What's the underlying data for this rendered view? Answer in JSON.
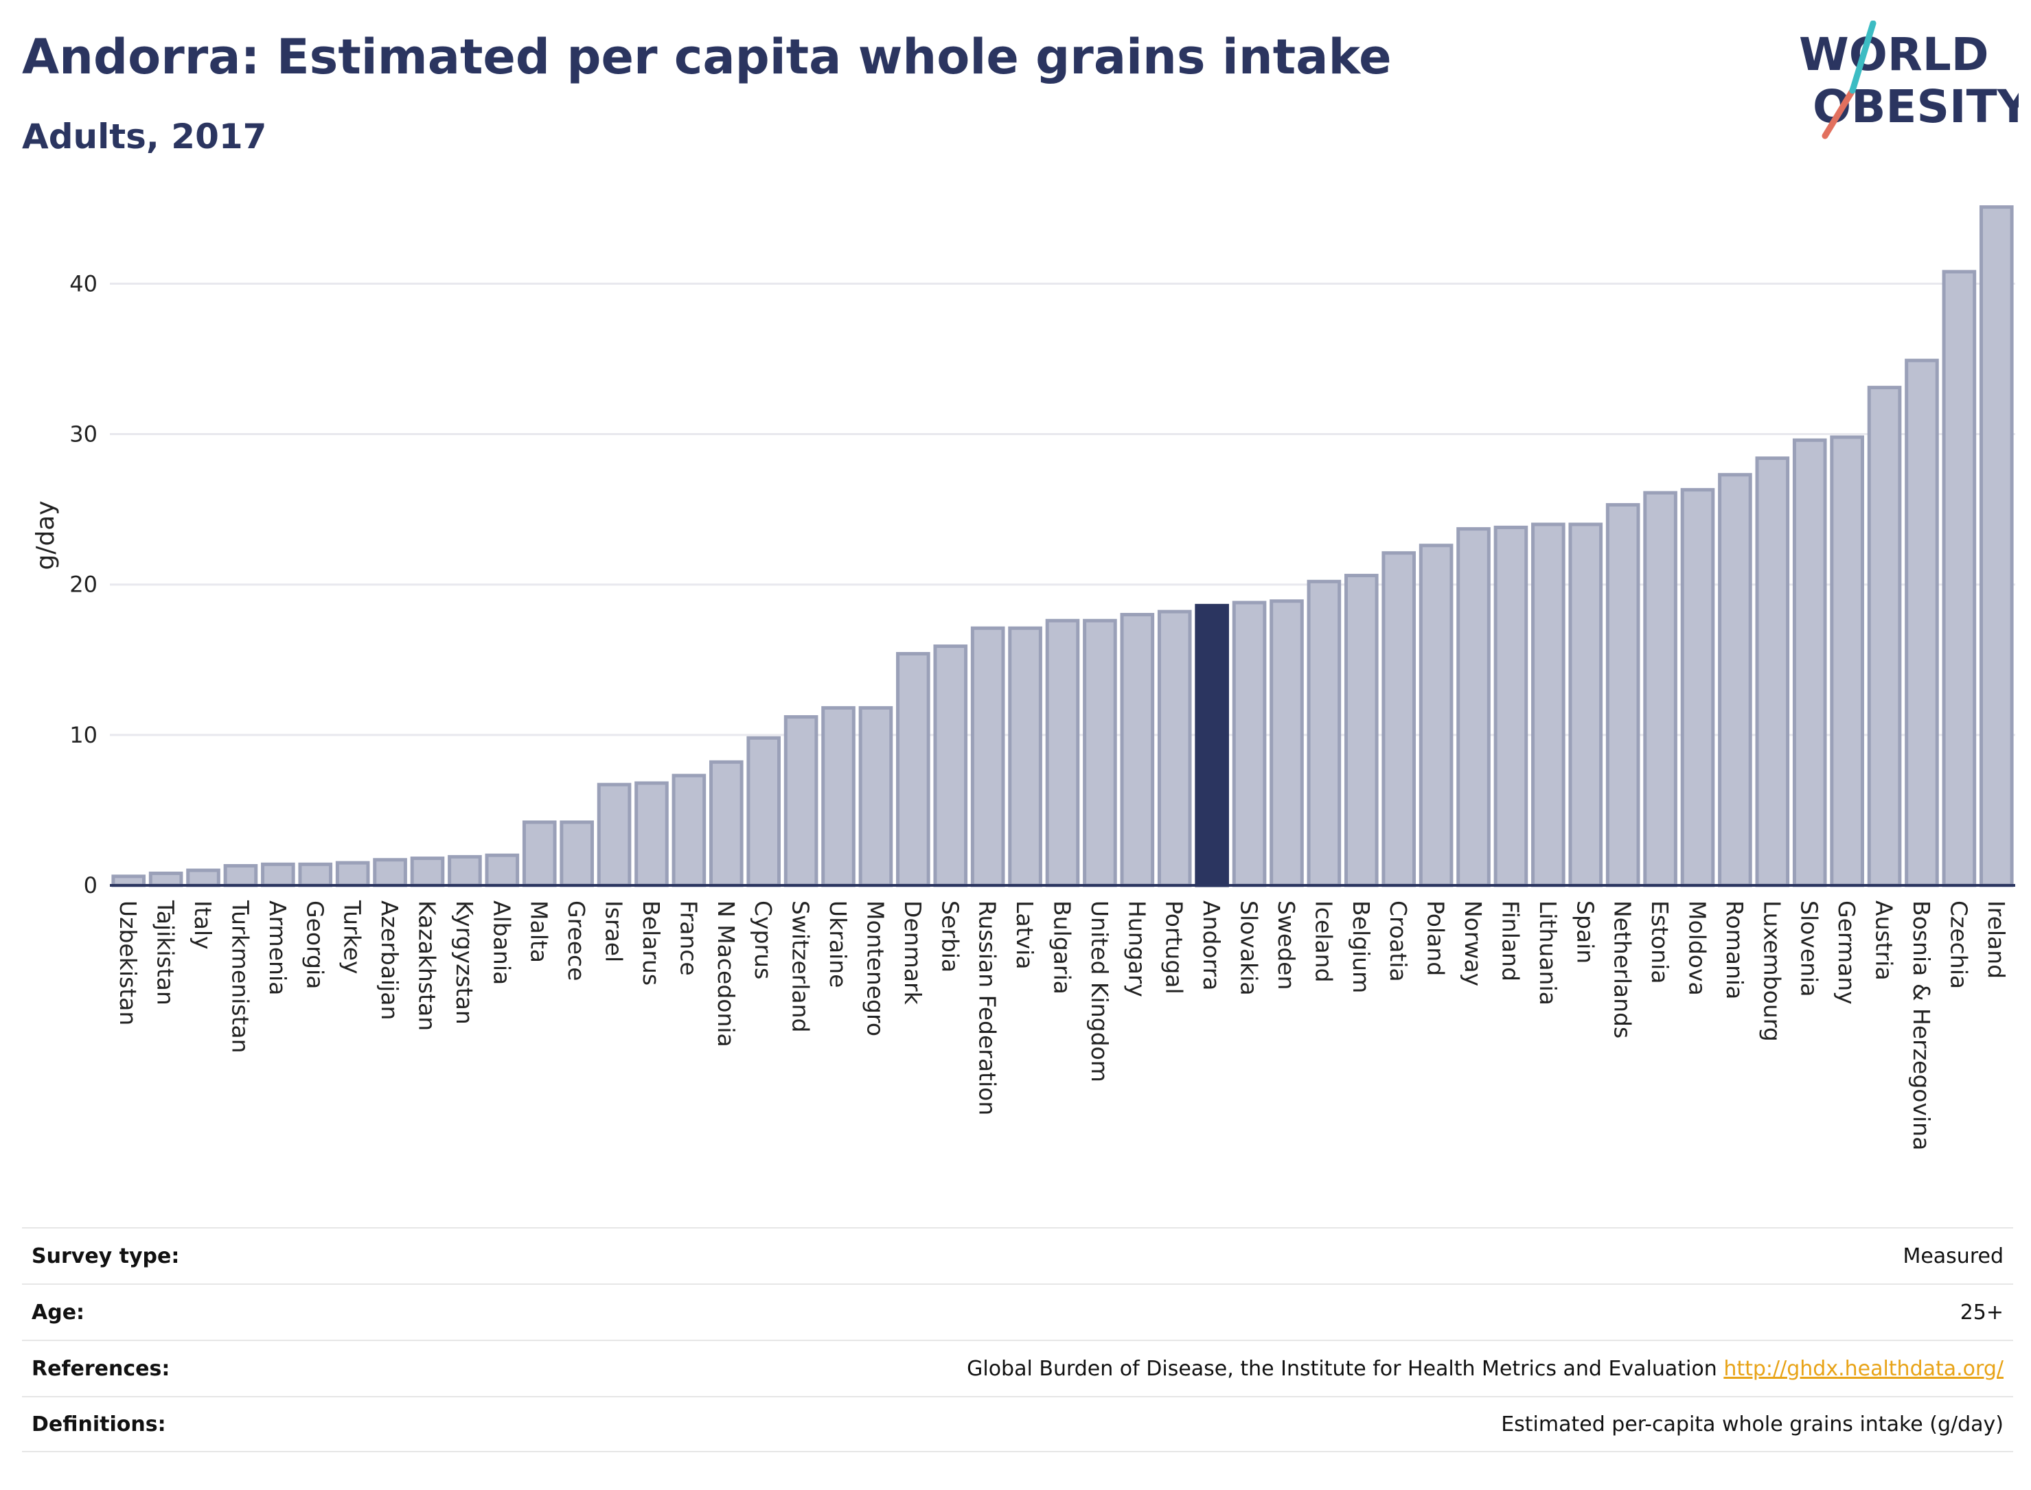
{
  "header": {
    "title": "Andorra: Estimated per capita whole grains intake",
    "subtitle": "Adults, 2017"
  },
  "logo": {
    "line1": "WORLD",
    "line2": "OBESITY"
  },
  "colors": {
    "bar": "#bcc0d1",
    "bar_edge": "#9aa0b8",
    "highlight": "#2b3560",
    "title": "#2b3560"
  },
  "chart_data": {
    "type": "bar",
    "ylabel": "g/day",
    "xlabel": "",
    "ylim": [
      0,
      47
    ],
    "yticks": [
      0,
      10,
      20,
      30,
      40
    ],
    "grid": true,
    "highlight": "Andorra",
    "categories": [
      "Uzbekistan",
      "Tajikistan",
      "Italy",
      "Turkmenistan",
      "Armenia",
      "Georgia",
      "Turkey",
      "Azerbaijan",
      "Kazakhstan",
      "Kyrgyzstan",
      "Albania",
      "Malta",
      "Greece",
      "Israel",
      "Belarus",
      "France",
      "N Macedonia",
      "Cyprus",
      "Switzerland",
      "Ukraine",
      "Montenegro",
      "Denmark",
      "Serbia",
      "Russian Federation",
      "Latvia",
      "Bulgaria",
      "United Kingdom",
      "Hungary",
      "Portugal",
      "Andorra",
      "Slovakia",
      "Sweden",
      "Iceland",
      "Belgium",
      "Croatia",
      "Poland",
      "Norway",
      "Finland",
      "Lithuania",
      "Spain",
      "Netherlands",
      "Estonia",
      "Moldova",
      "Romania",
      "Luxembourg",
      "Slovenia",
      "Germany",
      "Austria",
      "Bosnia & Herzegovina",
      "Czechia",
      "Ireland"
    ],
    "values": [
      0.6,
      0.8,
      1.0,
      1.3,
      1.4,
      1.4,
      1.5,
      1.7,
      1.8,
      1.9,
      2.0,
      4.2,
      4.2,
      6.7,
      6.8,
      7.3,
      8.2,
      9.8,
      11.2,
      11.8,
      11.8,
      15.4,
      15.9,
      17.1,
      17.1,
      17.6,
      17.6,
      18.0,
      18.2,
      18.6,
      18.8,
      18.9,
      20.2,
      20.6,
      22.1,
      22.6,
      23.7,
      23.8,
      24.0,
      24.0,
      25.3,
      26.1,
      26.3,
      27.3,
      28.4,
      29.6,
      29.8,
      33.1,
      34.9,
      40.8,
      45.1
    ]
  },
  "info": {
    "survey_type": {
      "label": "Survey type:",
      "value": "Measured"
    },
    "age": {
      "label": "Age:",
      "value": "25+"
    },
    "references": {
      "label": "References:",
      "value": "Global Burden of Disease, the Institute for Health Metrics and Evaluation",
      "link": "http://ghdx.healthdata.org/"
    },
    "definitions": {
      "label": "Definitions:",
      "value": "Estimated per-capita whole grains intake (g/day)"
    }
  }
}
